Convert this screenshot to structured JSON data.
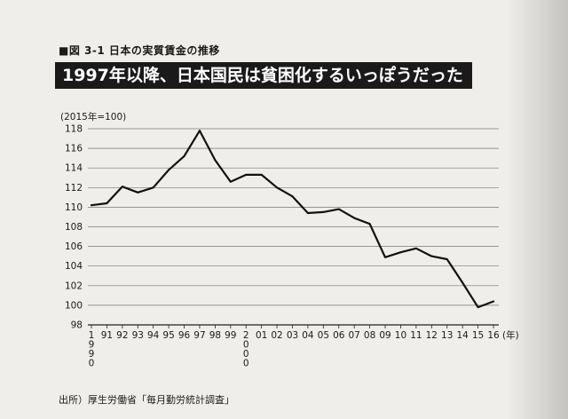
{
  "figure_label": "■図 3-1 日本の実質賃金の推移",
  "headline": "1997年以降、日本国民は貧困化するいっぽうだった",
  "source": "出所）厚生労働省「毎月勤労統計調査」",
  "chart_data": {
    "type": "line",
    "title": "1997年以降、日本国民は貧困化するいっぽうだった",
    "ylabel": "(2015年=100)",
    "xlabel": "(年)",
    "ylim": [
      98,
      118
    ],
    "yticks": [
      98,
      100,
      102,
      104,
      106,
      108,
      110,
      112,
      114,
      116,
      118
    ],
    "grid": true,
    "x_tick_labels": [
      "1990",
      "91",
      "92",
      "93",
      "94",
      "95",
      "96",
      "97",
      "98",
      "99",
      "2000",
      "01",
      "02",
      "03",
      "04",
      "05",
      "06",
      "07",
      "08",
      "09",
      "10",
      "11",
      "12",
      "13",
      "14",
      "15",
      "16"
    ],
    "x": [
      1990,
      1991,
      1992,
      1993,
      1994,
      1995,
      1996,
      1997,
      1998,
      1999,
      2000,
      2001,
      2002,
      2003,
      2004,
      2005,
      2006,
      2007,
      2008,
      2009,
      2010,
      2011,
      2012,
      2013,
      2014,
      2015,
      2016
    ],
    "series": [
      {
        "values": [
          110.2,
          110.4,
          112.1,
          111.5,
          112.0,
          113.8,
          115.2,
          117.8,
          114.8,
          112.6,
          113.3,
          113.3,
          112.0,
          111.1,
          109.4,
          109.5,
          109.8,
          108.9,
          108.3,
          104.9,
          105.4,
          105.8,
          105.0,
          104.7,
          102.3,
          99.8,
          100.4
        ],
        "color": "#111111"
      }
    ]
  }
}
